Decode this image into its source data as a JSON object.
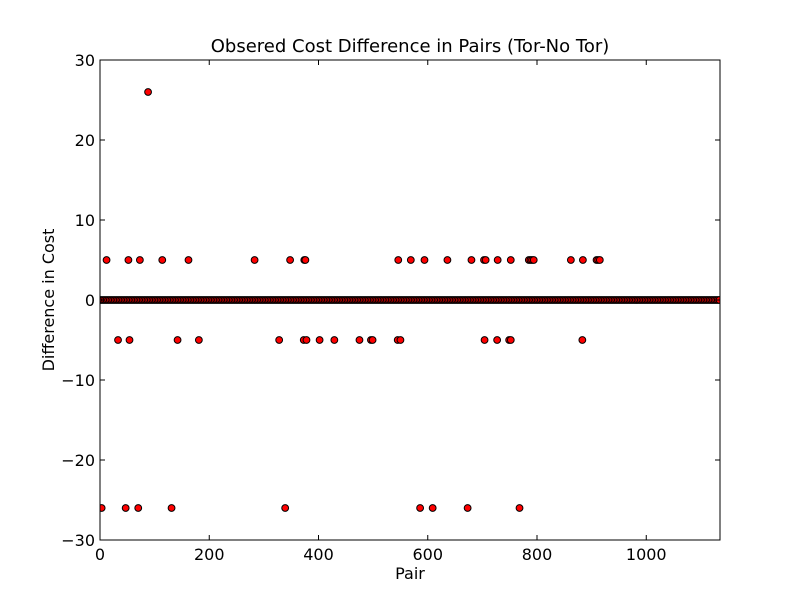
{
  "chart_data": {
    "type": "scatter",
    "title": "Obsered Cost Difference in Pairs (Tor-No Tor)",
    "xlabel": "Pair",
    "ylabel": "Difference in Cost",
    "xlim": [
      0,
      1135
    ],
    "ylim": [
      -30,
      30
    ],
    "xticks": [
      0,
      200,
      400,
      600,
      800,
      1000
    ],
    "yticks": [
      -30,
      -20,
      -10,
      0,
      10,
      20,
      30
    ],
    "xtick_labels": [
      "0",
      "200",
      "400",
      "600",
      "800",
      "1000"
    ],
    "ytick_labels": [
      "−30",
      "−20",
      "−10",
      "0",
      "10",
      "20",
      "30"
    ],
    "grid": false,
    "marker_color": "#ff0000",
    "marker_edge_color": "#000000",
    "zero_row": {
      "x_start": 0,
      "x_end": 1135,
      "step": 3,
      "y": 0
    },
    "points": [
      {
        "x": 88,
        "y": 26
      },
      {
        "x": 12,
        "y": 5
      },
      {
        "x": 52,
        "y": 5
      },
      {
        "x": 73,
        "y": 5
      },
      {
        "x": 114,
        "y": 5
      },
      {
        "x": 162,
        "y": 5
      },
      {
        "x": 283,
        "y": 5
      },
      {
        "x": 348,
        "y": 5
      },
      {
        "x": 374,
        "y": 5
      },
      {
        "x": 376,
        "y": 5
      },
      {
        "x": 546,
        "y": 5
      },
      {
        "x": 569,
        "y": 5
      },
      {
        "x": 594,
        "y": 5
      },
      {
        "x": 636,
        "y": 5
      },
      {
        "x": 680,
        "y": 5
      },
      {
        "x": 703,
        "y": 5
      },
      {
        "x": 706,
        "y": 5
      },
      {
        "x": 728,
        "y": 5
      },
      {
        "x": 752,
        "y": 5
      },
      {
        "x": 785,
        "y": 5
      },
      {
        "x": 788,
        "y": 5
      },
      {
        "x": 791,
        "y": 5
      },
      {
        "x": 794,
        "y": 5
      },
      {
        "x": 862,
        "y": 5
      },
      {
        "x": 884,
        "y": 5
      },
      {
        "x": 909,
        "y": 5
      },
      {
        "x": 912,
        "y": 5
      },
      {
        "x": 915,
        "y": 5
      },
      {
        "x": 33,
        "y": -5
      },
      {
        "x": 54,
        "y": -5
      },
      {
        "x": 142,
        "y": -5
      },
      {
        "x": 181,
        "y": -5
      },
      {
        "x": 328,
        "y": -5
      },
      {
        "x": 373,
        "y": -5
      },
      {
        "x": 378,
        "y": -5
      },
      {
        "x": 402,
        "y": -5
      },
      {
        "x": 429,
        "y": -5
      },
      {
        "x": 475,
        "y": -5
      },
      {
        "x": 496,
        "y": -5
      },
      {
        "x": 499,
        "y": -5
      },
      {
        "x": 545,
        "y": -5
      },
      {
        "x": 550,
        "y": -5
      },
      {
        "x": 704,
        "y": -5
      },
      {
        "x": 727,
        "y": -5
      },
      {
        "x": 749,
        "y": -5
      },
      {
        "x": 752,
        "y": -5
      },
      {
        "x": 883,
        "y": -5
      },
      {
        "x": 3,
        "y": -26
      },
      {
        "x": 47,
        "y": -26
      },
      {
        "x": 70,
        "y": -26
      },
      {
        "x": 131,
        "y": -26
      },
      {
        "x": 339,
        "y": -26
      },
      {
        "x": 586,
        "y": -26
      },
      {
        "x": 609,
        "y": -26
      },
      {
        "x": 673,
        "y": -26
      },
      {
        "x": 768,
        "y": -26
      }
    ]
  }
}
